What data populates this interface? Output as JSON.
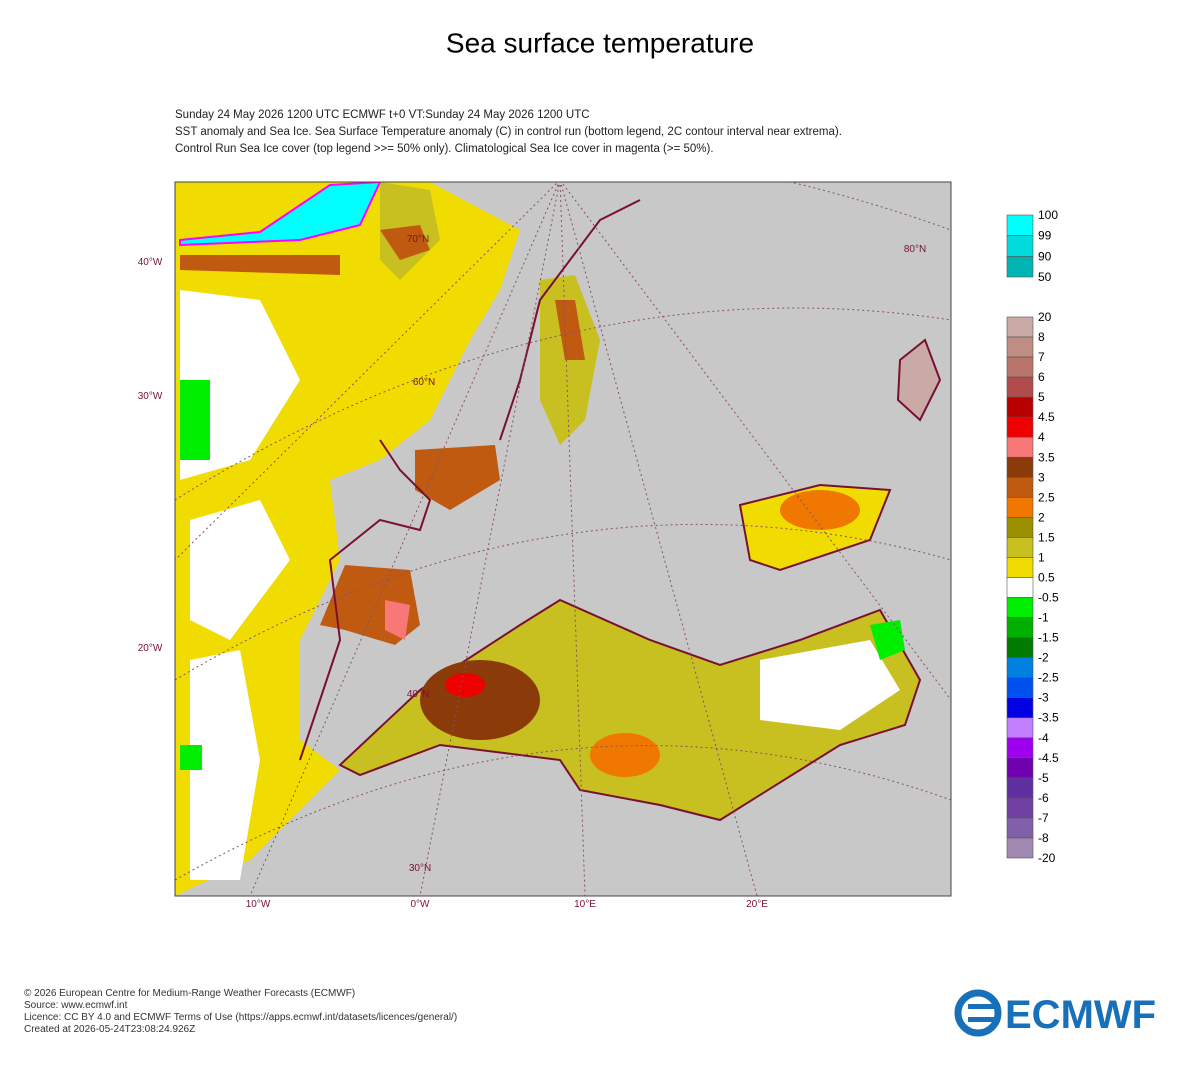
{
  "title": "Sea surface temperature",
  "header": {
    "lines": [
      "Sunday 24 May 2026 1200 UTC  ECMWF  t+0  VT:Sunday 24 May 2026 1200 UTC",
      "SST anomaly and Sea Ice. Sea Surface Temperature anomaly (C) in control run (bottom legend, 2C contour interval near extrema).",
      "Control Run Sea Ice cover (top legend >>= 50% only). Climatological Sea Ice cover in magenta (>= 50%)."
    ]
  },
  "map": {
    "lon_labels_left": [
      "40°W",
      "30°W",
      "20°W"
    ],
    "lon_labels_bottom": [
      "10°W",
      "0°W",
      "10°E",
      "20°E"
    ],
    "lat_labels": [
      "80°N",
      "70°N",
      "60°N",
      "40°N",
      "30°N"
    ]
  },
  "legend_ice": {
    "labels": [
      "100",
      "99",
      "90",
      "50"
    ],
    "colors": [
      "#00ffff",
      "#00dcdc",
      "#00b4b4"
    ]
  },
  "legend_anomaly": {
    "labels": [
      "20",
      "8",
      "7",
      "6",
      "5",
      "4.5",
      "4",
      "3.5",
      "3",
      "2.5",
      "2",
      "1.5",
      "1",
      "0.5",
      "-0.5",
      "-1",
      "-1.5",
      "-2",
      "-2.5",
      "-3",
      "-3.5",
      "-4",
      "-4.5",
      "-5",
      "-6",
      "-7",
      "-8",
      "-20"
    ],
    "colors": [
      "#c9aaa6",
      "#bf8d84",
      "#b8756c",
      "#b04c4c",
      "#b80000",
      "#ee0000",
      "#f87878",
      "#8b3a0a",
      "#c05a10",
      "#f07800",
      "#9b9000",
      "#c8c020",
      "#f0dc00",
      "#ffffff",
      "#00ee00",
      "#00b000",
      "#007a00",
      "#0080e0",
      "#0050f0",
      "#0000e0",
      "#c080ff",
      "#a000f0",
      "#7000b0",
      "#6030a0",
      "#7040a0",
      "#8060a8",
      "#a088b0"
    ]
  },
  "footer": {
    "lines": [
      "© 2026 European Centre for Medium-Range Weather Forecasts (ECMWF)",
      "Source: www.ecmwf.int",
      "Licence: CC BY 4.0 and ECMWF Terms of Use (https://apps.ecmwf.int/datasets/licences/general/)",
      "Created at 2026-05-24T23:08:24.926Z"
    ]
  },
  "logo": "ECMWF"
}
